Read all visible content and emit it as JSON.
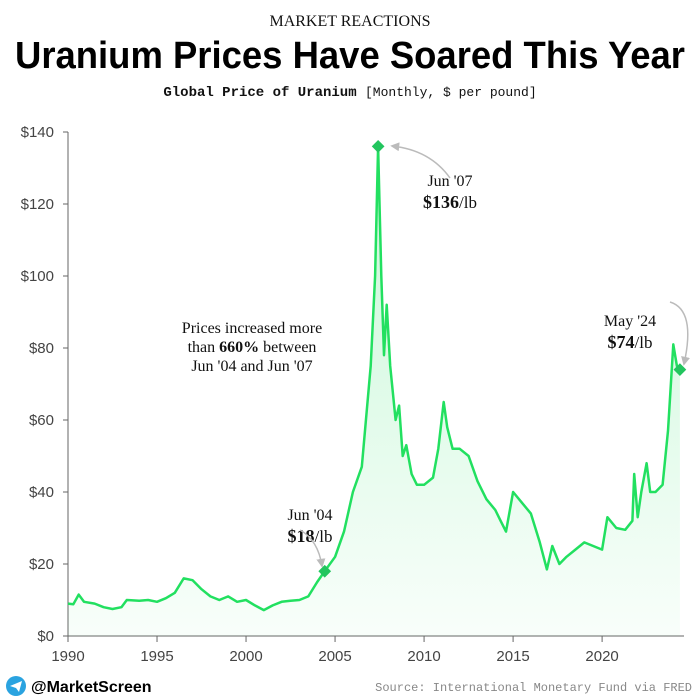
{
  "header": {
    "kicker": "MARKET REACTIONS",
    "handle": "@MarketScreen",
    "source": "Source: International Monetary Fund via FRED"
  },
  "chart_data": {
    "type": "line",
    "title": "Uranium Prices Have Soared This Year",
    "subtitle": "Global Price of Uranium",
    "subtitle_note": "[Monthly, $ per pound]",
    "color": "#22e060",
    "xlim": [
      1990,
      2024.6
    ],
    "xticks": [
      1990,
      1995,
      2000,
      2005,
      2010,
      2015,
      2020
    ],
    "ylim": [
      0,
      140
    ],
    "yticks": [
      {
        "value": 0,
        "label": "$0"
      },
      {
        "value": 20,
        "label": "$20"
      },
      {
        "value": 40,
        "label": "$40"
      },
      {
        "value": 60,
        "label": "$60"
      },
      {
        "value": 80,
        "label": "$80"
      },
      {
        "value": 100,
        "label": "$100"
      },
      {
        "value": 120,
        "label": "$120"
      },
      {
        "value": 140,
        "label": "$140"
      }
    ],
    "x": [
      1990,
      1990.3,
      1990.6,
      1990.9,
      1991.5,
      1992,
      1992.5,
      1993,
      1993.3,
      1994,
      1994.5,
      1995,
      1995.5,
      1996,
      1996.5,
      1997,
      1997.5,
      1998,
      1998.5,
      1999,
      1999.5,
      2000,
      2000.5,
      2001,
      2001.5,
      2002,
      2002.5,
      2003,
      2003.5,
      2004,
      2004.42,
      2005,
      2005.5,
      2006,
      2006.5,
      2007,
      2007.25,
      2007.42,
      2007.6,
      2007.75,
      2007.9,
      2008.1,
      2008.4,
      2008.6,
      2008.8,
      2009,
      2009.3,
      2009.6,
      2010,
      2010.5,
      2010.8,
      2011.1,
      2011.3,
      2011.6,
      2012,
      2012.5,
      2013,
      2013.5,
      2014,
      2014.3,
      2014.6,
      2015,
      2015.5,
      2016,
      2016.5,
      2016.9,
      2017.2,
      2017.6,
      2018,
      2018.5,
      2019,
      2019.5,
      2020,
      2020.3,
      2020.8,
      2021.3,
      2021.7,
      2021.8,
      2022,
      2022.2,
      2022.5,
      2022.7,
      2023,
      2023.4,
      2023.7,
      2024,
      2024.2,
      2024.37
    ],
    "values": [
      9,
      8.8,
      11.5,
      9.5,
      9,
      8,
      7.5,
      8,
      10,
      9.8,
      10,
      9.5,
      10.5,
      12,
      16,
      15.5,
      13,
      11,
      10,
      11,
      9.5,
      10,
      8.5,
      7.2,
      8.5,
      9.5,
      9.8,
      10,
      11,
      15,
      18,
      22,
      29,
      40,
      47,
      75,
      100,
      136,
      100,
      78,
      92,
      75,
      60,
      64,
      50,
      53,
      45,
      42,
      42,
      44,
      52,
      65,
      58,
      52,
      52,
      50,
      43,
      38,
      35,
      32,
      29,
      40,
      37,
      34,
      26,
      18.5,
      25,
      20,
      22,
      24,
      26,
      25,
      24,
      33,
      30,
      29.5,
      32,
      45,
      33,
      40,
      48,
      40,
      40,
      42,
      57,
      81,
      75,
      74
    ],
    "highlights": [
      {
        "x": 2004.42,
        "value": 18,
        "date": "Jun '04",
        "price": "$18",
        "unit": "/lb"
      },
      {
        "x": 2007.42,
        "value": 136,
        "date": "Jun '07",
        "price": "$136",
        "unit": "/lb"
      },
      {
        "x": 2024.37,
        "value": 74,
        "date": "May '24",
        "price": "$74",
        "unit": "/lb"
      }
    ],
    "note": {
      "lines": [
        "Prices increased more",
        "than",
        "660%",
        "between",
        "Jun '04 and Jun '07"
      ]
    }
  }
}
